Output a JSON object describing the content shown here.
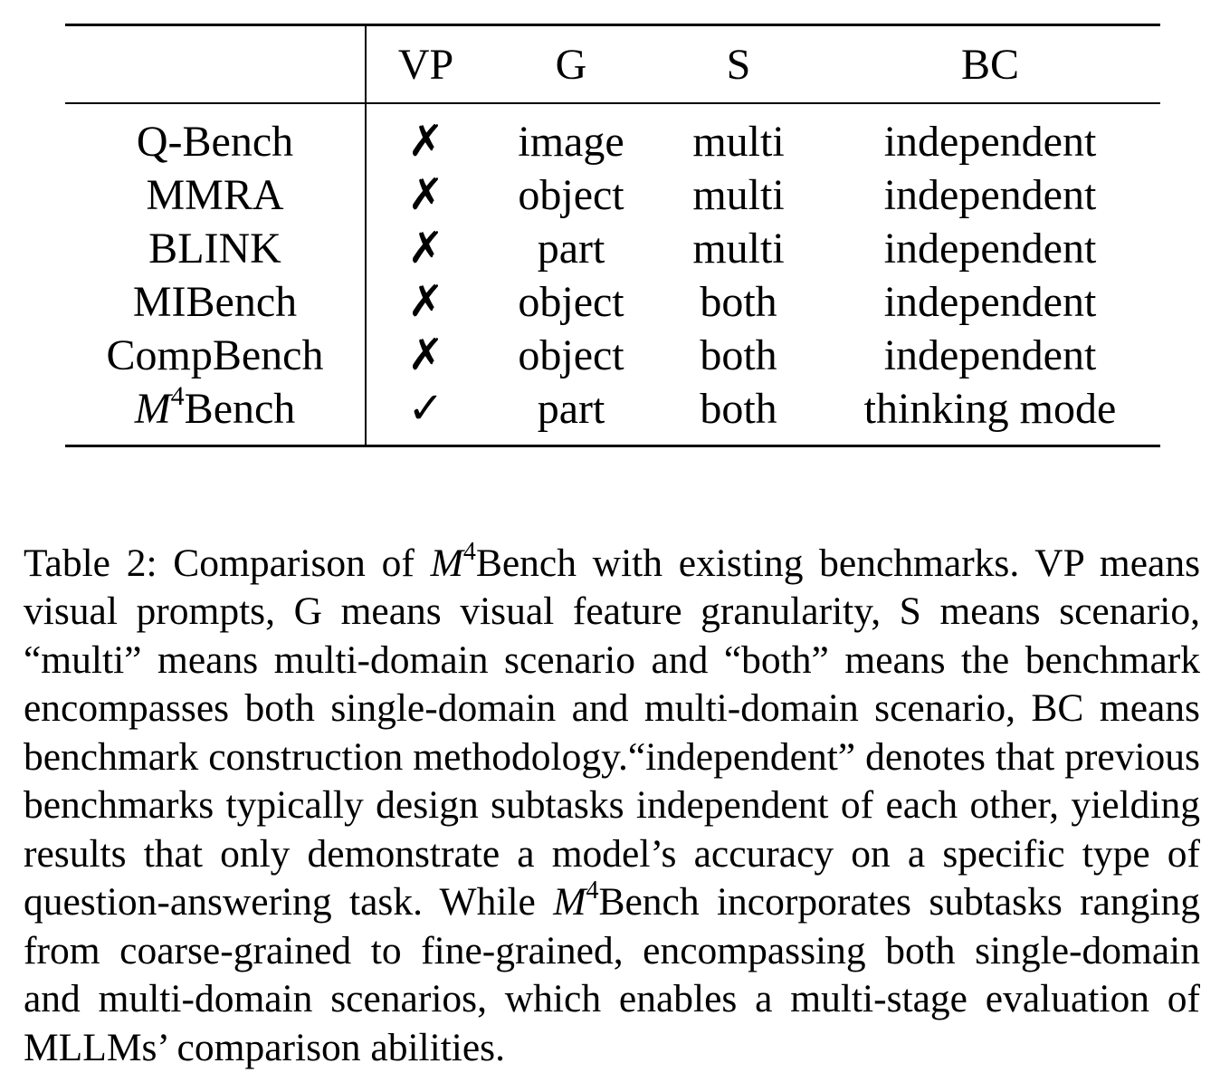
{
  "table": {
    "headers": {
      "name": "",
      "vp": "VP",
      "g": "G",
      "s": "S",
      "bc": "BC"
    },
    "rows": [
      {
        "name": "Q-Bench",
        "vp": "✗",
        "g": "image",
        "s": "multi",
        "bc": "independent"
      },
      {
        "name": "MMRA",
        "vp": "✗",
        "g": "object",
        "s": "multi",
        "bc": "independent"
      },
      {
        "name": "BLINK",
        "vp": "✗",
        "g": "part",
        "s": "multi",
        "bc": "independent"
      },
      {
        "name": "MIBench",
        "vp": "✗",
        "g": "object",
        "s": "both",
        "bc": "independent"
      },
      {
        "name": "CompBench",
        "vp": "✗",
        "g": "object",
        "s": "both",
        "bc": "independent"
      }
    ],
    "last_row": {
      "name_math": "M",
      "name_sup": "4",
      "name_rest": "Bench",
      "vp": "✓",
      "g": "part",
      "s": "both",
      "bc": "thinking mode"
    }
  },
  "caption": {
    "part1": "Table 2:  Comparison of ",
    "math1": "M",
    "sup1": "4",
    "part2": "Bench with existing benchmarks. VP means visual prompts, G means visual feature granularity, S means scenario, “multi” means multi-domain scenario and “both” means the benchmark encompasses both single-domain and multi-domain scenario, BC means benchmark construction methodology.“independent” denotes that previous benchmarks typically design subtasks independent of each other, yielding results that only demonstrate a model’s accuracy on a specific type of question-answering task.  While ",
    "math2": "M",
    "sup2": "4",
    "part3": "Bench incorporates subtasks ranging from coarse-grained to fine-grained, encompassing both single-domain and multi-domain scenarios, which enables a multi-stage evaluation of MLLMs’ comparison abilities."
  }
}
